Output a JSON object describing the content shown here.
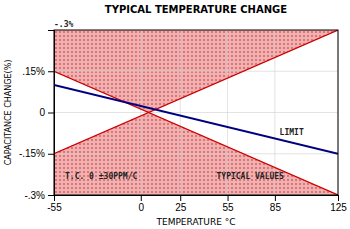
{
  "chart_data": {
    "type": "line",
    "title": "TYPICAL TEMPERATURE CHANGE",
    "x_label": "TEMPERATURE °C",
    "y_label": "CAPACITANCE CHANGE(%)",
    "x": [
      -55,
      125
    ],
    "series": [
      {
        "color": "#000080",
        "values": [
          0.1,
          -0.15
        ]
      },
      {
        "color": "#cc0000",
        "values": [
          0.15,
          -0.3
        ]
      },
      {
        "color": "#cc0000",
        "values": [
          -0.15,
          0.3
        ]
      }
    ],
    "xlim": [
      -55,
      125
    ],
    "ylim": [
      -0.3,
      0.3
    ],
    "xticks": [
      -55,
      0,
      25,
      55,
      85,
      125
    ],
    "yticks": [
      {
        "value": -0.3,
        "label": "-.3%"
      },
      {
        "value": -0.15,
        "label": "-.15%"
      },
      0,
      {
        "value": 0.15,
        "label": ".15%"
      }
    ],
    "grid": true,
    "annotations": [
      {
        "text": "-.3%",
        "x": -55,
        "y": 0.3
      },
      {
        "text": "T.C. 0 ±30PPM/C",
        "x": -48,
        "y": -0.24
      },
      {
        "text": "TYPICAL VALUES",
        "x": 48,
        "y": -0.24
      },
      {
        "text": "LIMIT",
        "x": 88,
        "y": -0.08
      }
    ]
  }
}
